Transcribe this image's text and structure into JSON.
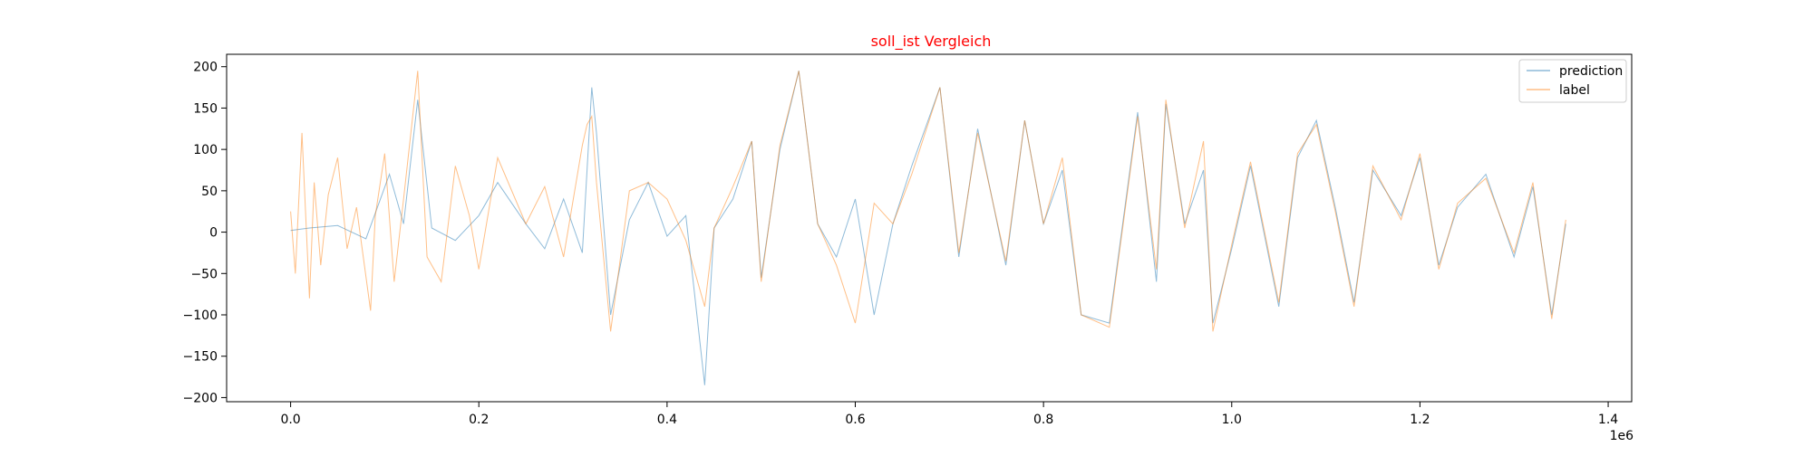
{
  "chart_data": {
    "type": "line",
    "title": "soll_ist Vergleich",
    "title_color": "#ff0000",
    "xlabel": "",
    "ylabel": "",
    "x_offset_label": "1e6",
    "xlim": [
      -0.068,
      1.425
    ],
    "ylim": [
      -205,
      215
    ],
    "x_ticks": [
      0.0,
      0.2,
      0.4,
      0.6,
      0.8,
      1.0,
      1.2,
      1.4
    ],
    "x_tick_labels": [
      "0.0",
      "0.2",
      "0.4",
      "0.6",
      "0.8",
      "1.0",
      "1.2",
      "1.4"
    ],
    "y_ticks": [
      -200,
      -150,
      -100,
      -50,
      0,
      50,
      100,
      150,
      200
    ],
    "y_tick_labels": [
      "−200",
      "−150",
      "−100",
      "−50",
      "0",
      "50",
      "100",
      "150",
      "200"
    ],
    "grid": false,
    "legend_position": "top-right",
    "series": [
      {
        "name": "prediction",
        "color": "#1f77b4",
        "x": [
          0.0,
          0.02,
          0.05,
          0.08,
          0.105,
          0.12,
          0.135,
          0.15,
          0.175,
          0.2,
          0.22,
          0.25,
          0.27,
          0.29,
          0.31,
          0.32,
          0.325,
          0.34,
          0.36,
          0.38,
          0.4,
          0.42,
          0.44,
          0.45,
          0.47,
          0.49,
          0.5,
          0.52,
          0.54,
          0.56,
          0.58,
          0.6,
          0.62,
          0.64,
          0.66,
          0.69,
          0.71,
          0.73,
          0.76,
          0.78,
          0.8,
          0.82,
          0.84,
          0.87,
          0.9,
          0.92,
          0.93,
          0.95,
          0.97,
          0.98,
          1.0,
          1.02,
          1.05,
          1.07,
          1.09,
          1.11,
          1.13,
          1.15,
          1.18,
          1.2,
          1.22,
          1.24,
          1.27,
          1.3,
          1.32,
          1.34,
          1.355
        ],
        "y": [
          2,
          5,
          8,
          -8,
          70,
          10,
          160,
          5,
          -10,
          20,
          60,
          10,
          -20,
          40,
          -25,
          175,
          120,
          -100,
          15,
          60,
          -5,
          20,
          -185,
          5,
          40,
          110,
          -55,
          100,
          195,
          10,
          -30,
          40,
          -100,
          10,
          80,
          175,
          -30,
          125,
          -40,
          135,
          10,
          75,
          -100,
          -110,
          145,
          -60,
          155,
          10,
          75,
          -110,
          -20,
          80,
          -90,
          90,
          135,
          30,
          -85,
          75,
          20,
          90,
          -40,
          30,
          70,
          -30,
          55,
          -100,
          10
        ]
      },
      {
        "name": "label",
        "color": "#ff7f0e",
        "x": [
          0.0,
          0.005,
          0.012,
          0.02,
          0.025,
          0.032,
          0.04,
          0.05,
          0.06,
          0.07,
          0.085,
          0.09,
          0.1,
          0.11,
          0.12,
          0.135,
          0.145,
          0.16,
          0.175,
          0.19,
          0.2,
          0.22,
          0.25,
          0.27,
          0.29,
          0.31,
          0.315,
          0.32,
          0.325,
          0.34,
          0.36,
          0.38,
          0.4,
          0.42,
          0.44,
          0.45,
          0.47,
          0.49,
          0.5,
          0.52,
          0.54,
          0.56,
          0.58,
          0.6,
          0.62,
          0.64,
          0.66,
          0.69,
          0.71,
          0.73,
          0.76,
          0.78,
          0.8,
          0.82,
          0.84,
          0.87,
          0.9,
          0.92,
          0.93,
          0.95,
          0.97,
          0.98,
          1.0,
          1.02,
          1.05,
          1.07,
          1.09,
          1.11,
          1.13,
          1.15,
          1.18,
          1.2,
          1.22,
          1.24,
          1.27,
          1.3,
          1.32,
          1.34,
          1.355
        ],
        "y": [
          25,
          -50,
          120,
          -80,
          60,
          -40,
          45,
          90,
          -20,
          30,
          -95,
          20,
          95,
          -60,
          40,
          195,
          -30,
          -60,
          80,
          20,
          -45,
          90,
          10,
          55,
          -30,
          105,
          130,
          140,
          60,
          -120,
          50,
          60,
          40,
          -10,
          -90,
          5,
          55,
          110,
          -60,
          105,
          195,
          10,
          -40,
          -110,
          35,
          10,
          70,
          175,
          -25,
          120,
          -35,
          135,
          10,
          90,
          -100,
          -115,
          140,
          -45,
          160,
          5,
          110,
          -120,
          -15,
          85,
          -85,
          95,
          130,
          25,
          -90,
          80,
          15,
          95,
          -45,
          35,
          65,
          -25,
          60,
          -105,
          15
        ]
      }
    ]
  }
}
